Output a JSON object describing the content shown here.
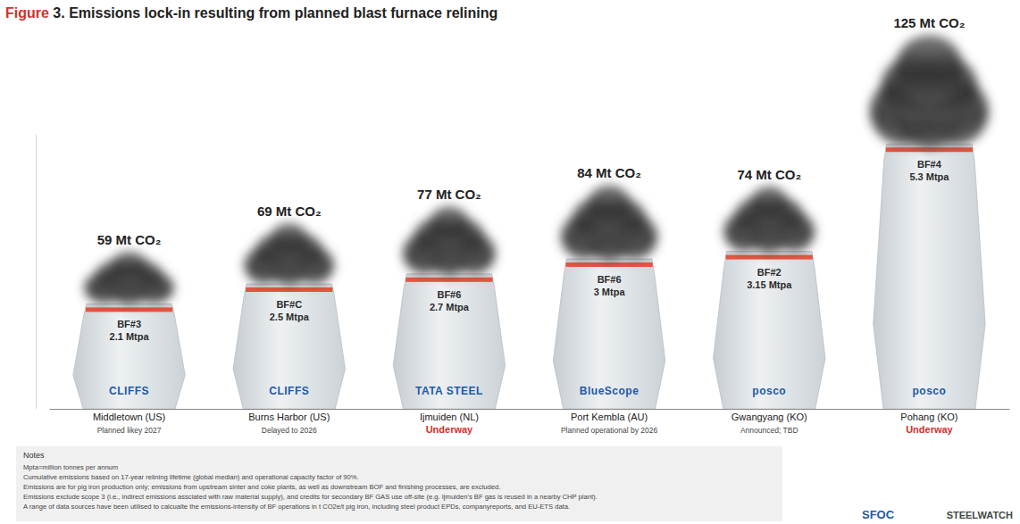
{
  "chart_data": {
    "type": "bar",
    "title": "Figure 3. Emissions lock-in resulting from planned blast furnace relining",
    "categories": [
      "Middletown (US)",
      "Burns Harbor (US)",
      "Ijmuiden (NL)",
      "Port Kembla (AU)",
      "Gwangyang (KO)",
      "Pohang (KO)"
    ],
    "statuses": [
      "Planned likey 2027",
      "Delayed to 2026",
      "Underway",
      "Planned operational by 2026",
      "Announced; TBD",
      "Underway"
    ],
    "status_colors": [
      "#444444",
      "#444444",
      "#d0312d",
      "#444444",
      "#444444",
      "#d0312d"
    ],
    "companies": [
      "CLIFFS",
      "CLIFFS",
      "TATA STEEL",
      "BlueScope",
      "posco",
      "posco"
    ],
    "furnaces": [
      "BF#3",
      "BF#C",
      "BF#6",
      "BF#6",
      "BF#2",
      "BF#4"
    ],
    "values": [
      2.1,
      2.5,
      2.7,
      3,
      3.15,
      5.3
    ],
    "value_labels": [
      "2.1 Mtpa",
      "2.5 Mtpa",
      "2.7 Mtpa",
      "3 Mtpa",
      "3.15 Mtpa",
      "5.3 Mtpa"
    ],
    "emissions": [
      59,
      69,
      77,
      84,
      74,
      125
    ],
    "emissions_labels": [
      "59 Mt CO₂",
      "69 Mt CO₂",
      "77 Mt CO₂",
      "84 Mt CO₂",
      "74 Mt CO₂",
      "125 Mt CO₂"
    ],
    "ylim": [
      0,
      5.5
    ],
    "yticks": [],
    "tick_labels": "x",
    "notes_title": "Notes",
    "notes": [
      "Mpta=million tonnes per annum",
      "Cumulative emissions based on 17-year relining lifetime (global median) and operational capacity factor of 90%.",
      "Emissions are for pig iron production only; emissions from upstream sinter and coke plants, as well as downstream BOF and finishing processes, are excluded.",
      "Emissions exclude scope 3 (i.e., indirect emissions assciated with raw material supply), and credits for secondary BF GAS use off-site (e.g. Ijmuiden's BF gas is reused in a nearby CHP plant).",
      "A range of data sources have been utilised to calcualte the emissions-intensity of BF operations in t CO2e/t pig iron, including steel product EPDs, companyreports, and EU-ETS data."
    ],
    "sources": [
      "SFOC",
      "STEELWATCH"
    ]
  }
}
